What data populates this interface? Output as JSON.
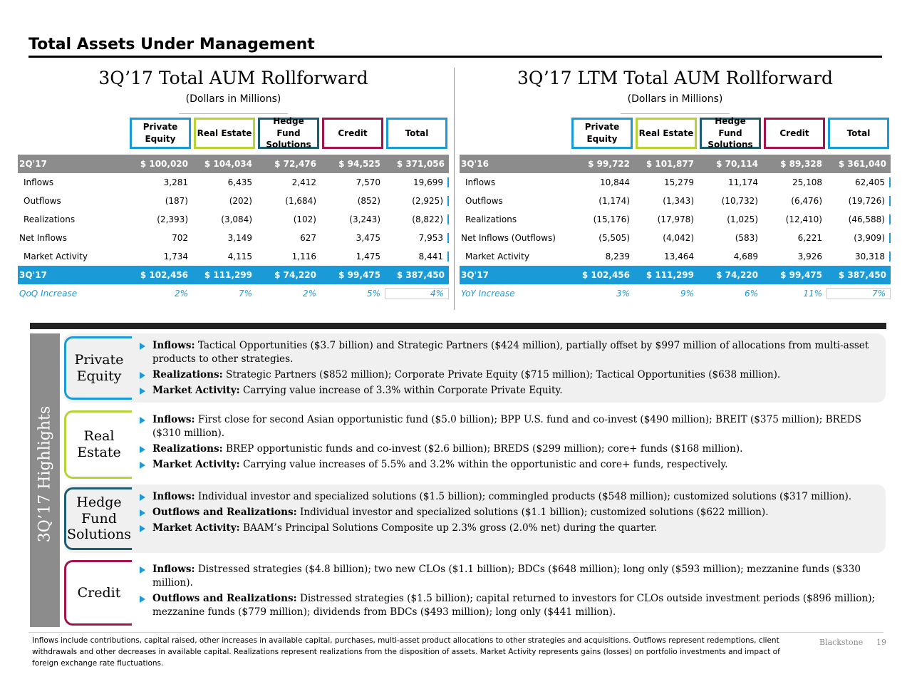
{
  "header": {
    "title": "Total Assets Under Management"
  },
  "tables": [
    {
      "title": "3Q’17 Total AUM Rollforward",
      "subtitle": "(Dollars in Millions)",
      "columns": [
        "Private Equity",
        "Real Estate",
        "Hedge Fund Solutions",
        "Credit",
        "Total"
      ],
      "rows": [
        {
          "label": "2Q'17",
          "cells": [
            "$ 100,020",
            "$ 104,034",
            "$ 72,476",
            "$ 94,525",
            "$ 371,056"
          ]
        },
        {
          "label": "Inflows",
          "cells": [
            "3,281",
            "6,435",
            "2,412",
            "7,570",
            "19,699"
          ]
        },
        {
          "label": "Outflows",
          "cells": [
            "(187)",
            "(202)",
            "(1,684)",
            "(852)",
            "(2,925)"
          ]
        },
        {
          "label": "Realizations",
          "cells": [
            "(2,393)",
            "(3,084)",
            "(102)",
            "(3,243)",
            "(8,822)"
          ]
        },
        {
          "label": "Net Inflows",
          "cells": [
            "702",
            "3,149",
            "627",
            "3,475",
            "7,953"
          ]
        },
        {
          "label": "Market Activity",
          "cells": [
            "1,734",
            "4,115",
            "1,116",
            "1,475",
            "8,441"
          ]
        },
        {
          "label": "3Q'17",
          "cells": [
            "$ 102,456",
            "$ 111,299",
            "$ 74,220",
            "$ 99,475",
            "$ 387,450"
          ]
        },
        {
          "label": "QoQ Increase",
          "cells": [
            "2%",
            "7%",
            "2%",
            "5%",
            "4%"
          ]
        }
      ]
    },
    {
      "title": "3Q’17 LTM Total AUM Rollforward",
      "subtitle": "(Dollars in Millions)",
      "columns": [
        "Private Equity",
        "Real Estate",
        "Hedge Fund Solutions",
        "Credit",
        "Total"
      ],
      "rows": [
        {
          "label": "3Q'16",
          "cells": [
            "$ 99,722",
            "$ 101,877",
            "$ 70,114",
            "$ 89,328",
            "$ 361,040"
          ]
        },
        {
          "label": "Inflows",
          "cells": [
            "10,844",
            "15,279",
            "11,174",
            "25,108",
            "62,405"
          ]
        },
        {
          "label": "Outflows",
          "cells": [
            "(1,174)",
            "(1,343)",
            "(10,732)",
            "(6,476)",
            "(19,726)"
          ]
        },
        {
          "label": "Realizations",
          "cells": [
            "(15,176)",
            "(17,978)",
            "(1,025)",
            "(12,410)",
            "(46,588)"
          ]
        },
        {
          "label": "Net Inflows (Outflows)",
          "cells": [
            "(5,505)",
            "(4,042)",
            "(583)",
            "6,221",
            "(3,909)"
          ]
        },
        {
          "label": "Market Activity",
          "cells": [
            "8,239",
            "13,464",
            "4,689",
            "3,926",
            "30,318"
          ]
        },
        {
          "label": "3Q'17",
          "cells": [
            "$ 102,456",
            "$ 111,299",
            "$ 74,220",
            "$ 99,475",
            "$ 387,450"
          ]
        },
        {
          "label": "YoY Increase",
          "cells": [
            "3%",
            "9%",
            "6%",
            "11%",
            "7%"
          ]
        }
      ]
    }
  ],
  "highlights": {
    "title": "3Q’17 Highlights",
    "sections": [
      {
        "label": "Private Equity",
        "bullets": [
          {
            "lead": "Inflows:",
            "text": "Tactical Opportunities ($3.7 billion) and Strategic Partners ($424 million), partially offset by $997 million of allocations from multi-asset products to other strategies."
          },
          {
            "lead": "Realizations:",
            "text": "Strategic Partners ($852 million); Corporate Private Equity ($715 million); Tactical Opportunities ($638 million)."
          },
          {
            "lead": "Market Activity:",
            "text": "Carrying value increase of 3.3% within Corporate Private Equity."
          }
        ]
      },
      {
        "label": "Real Estate",
        "bullets": [
          {
            "lead": "Inflows:",
            "text": "First close for second Asian opportunistic fund ($5.0 billion); BPP U.S. fund and co-invest ($490 million); BREIT ($375 million); BREDS ($310 million)."
          },
          {
            "lead": "Realizations:",
            "text": "BREP opportunistic funds and co-invest ($2.6 billion); BREDS ($299 million); core+ funds ($168 million)."
          },
          {
            "lead": "Market Activity:",
            "text": "Carrying value increases of 5.5% and 3.2% within the opportunistic and core+ funds, respectively."
          }
        ]
      },
      {
        "label": "Hedge Fund Solutions",
        "bullets": [
          {
            "lead": "Inflows:",
            "text": "Individual investor and specialized solutions ($1.5 billion); commingled products ($548 million); customized solutions ($317 million)."
          },
          {
            "lead": "Outflows and Realizations:",
            "text": "Individual investor and specialized solutions ($1.1 billion); customized solutions ($622 million)."
          },
          {
            "lead": "Market Activity:",
            "text": "BAAM’s Principal Solutions Composite up 2.3% gross (2.0% net) during the quarter."
          }
        ]
      },
      {
        "label": "Credit",
        "bullets": [
          {
            "lead": "Inflows:",
            "text": "Distressed strategies ($4.8 billion); two new CLOs ($1.1 billion); BDCs ($648 million); long only ($593 million); mezzanine funds ($330 million)."
          },
          {
            "lead": "Outflows and Realizations:",
            "text": "Distressed strategies ($1.5 billion); capital returned to investors for CLOs outside investment periods ($896 million); mezzanine funds ($779 million); dividends from BDCs ($493 million); long only ($441 million)."
          }
        ]
      }
    ]
  },
  "footer": {
    "note": "Inflows include contributions, capital raised, other increases in available capital, purchases, multi-asset product allocations to other strategies and acquisitions. Outflows represent redemptions, client withdrawals and other decreases in available capital. Realizations represent realizations from the disposition of assets. Market Activity represents gains (losses) on portfolio investments and impact of foreign exchange rate fluctuations.",
    "brand": "Blackstone",
    "page": "19"
  }
}
